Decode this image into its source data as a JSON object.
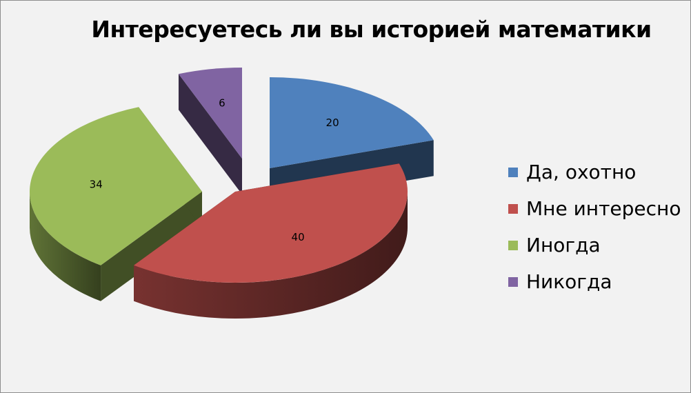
{
  "chart_data": {
    "type": "pie",
    "title": "Интересуетесь ли вы историей математики",
    "categories": [
      "Да, охотно",
      "Мне интересно",
      "Иногда",
      "Никогда"
    ],
    "values": [
      20,
      40,
      34,
      6
    ],
    "colors": [
      "#4f81bd",
      "#c0504d",
      "#9bbb59",
      "#8064a2"
    ],
    "legend_position": "right",
    "three_d": true,
    "exploded": true
  }
}
